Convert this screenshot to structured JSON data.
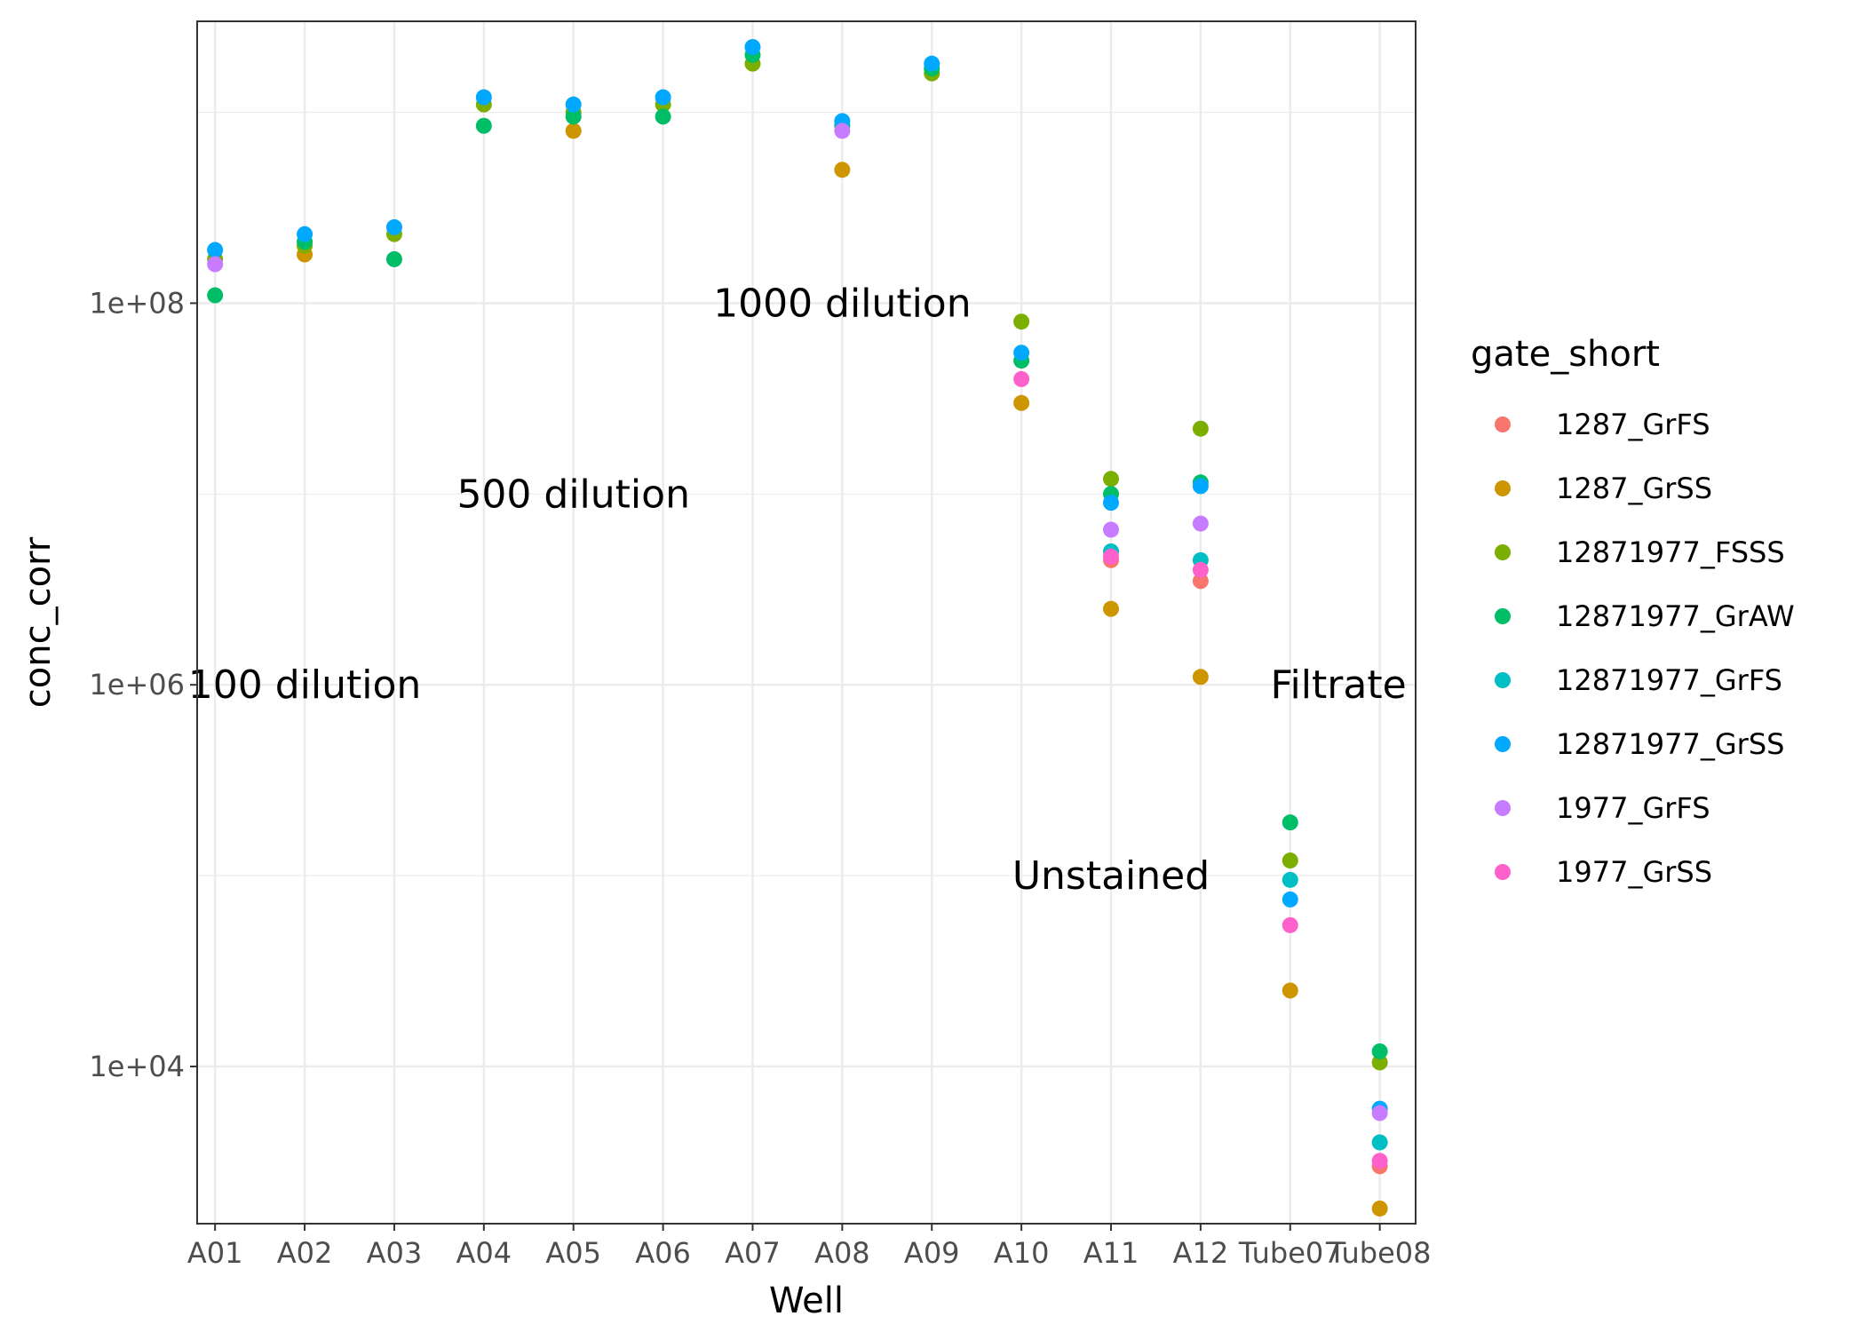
{
  "chart_data": {
    "type": "scatter",
    "xlabel": "Well",
    "ylabel": "conc_corr",
    "y_scale": "log10",
    "ylim": [
      1500,
      3000000000.0
    ],
    "y_ticks": [
      {
        "value": 10000,
        "label": "1e+04"
      },
      {
        "value": 1000000,
        "label": "1e+06"
      },
      {
        "value": 100000000,
        "label": "1e+08"
      }
    ],
    "categories": [
      "A01",
      "A02",
      "A03",
      "A04",
      "A05",
      "A06",
      "A07",
      "A08",
      "A09",
      "A10",
      "A11",
      "A12",
      "Tube07",
      "Tube08"
    ],
    "grid": true,
    "legend": {
      "title": "gate_short",
      "position": "right"
    },
    "annotations": [
      {
        "text": "100 dilution",
        "x": "A02",
        "y": 1000000
      },
      {
        "text": "500 dilution",
        "x": "A05",
        "y": 10000000
      },
      {
        "text": "1000 dilution",
        "x": "A08",
        "y": 100000000
      },
      {
        "text": "Filtrate",
        "x": "Tube08",
        "y": 1000000,
        "anchor": "end"
      },
      {
        "text": "Unstained",
        "x": "A11",
        "y": 100000
      }
    ],
    "series": [
      {
        "name": "1287_GrFS",
        "color": "#F8766D",
        "values": [
          null,
          null,
          null,
          null,
          null,
          null,
          null,
          null,
          null,
          null,
          4500000,
          3500000,
          null,
          3000
        ]
      },
      {
        "name": "1287_GrSS",
        "color": "#CD9600",
        "values": [
          null,
          180000000,
          null,
          null,
          800000000,
          null,
          null,
          500000000,
          null,
          30000000,
          2500000,
          1100000,
          25000,
          1800
        ]
      },
      {
        "name": "12871977_FSSS",
        "color": "#7CAE00",
        "values": [
          170000000,
          200000000,
          230000000,
          1100000000,
          1000000000,
          1100000000,
          1800000000,
          null,
          1600000000,
          80000000,
          12000000,
          22000000,
          120000,
          10500
        ]
      },
      {
        "name": "12871977_GrAW",
        "color": "#00BE67",
        "values": [
          110000000,
          210000000,
          170000000,
          850000000,
          950000000,
          950000000,
          2000000000,
          850000000,
          1700000000,
          50000000,
          10000000,
          11500000,
          190000,
          12000
        ]
      },
      {
        "name": "12871977_GrFS",
        "color": "#00BFC4",
        "values": [
          null,
          null,
          null,
          null,
          null,
          null,
          null,
          null,
          null,
          null,
          5000000,
          4500000,
          95000,
          4000
        ]
      },
      {
        "name": "12871977_GrSS",
        "color": "#00A9FF",
        "values": [
          190000000,
          230000000,
          250000000,
          1200000000,
          1100000000,
          1200000000,
          2200000000,
          900000000,
          1800000000,
          55000000,
          9000000,
          11000000,
          75000,
          6000
        ]
      },
      {
        "name": "1977_GrFS",
        "color": "#C77CFF",
        "values": [
          160000000,
          null,
          null,
          null,
          null,
          null,
          null,
          800000000,
          null,
          null,
          6500000,
          7000000,
          null,
          5700
        ]
      },
      {
        "name": "1977_GrSS",
        "color": "#FF61CC",
        "values": [
          null,
          null,
          null,
          null,
          null,
          null,
          null,
          null,
          null,
          40000000,
          4700000,
          4000000,
          55000,
          3200
        ]
      }
    ]
  }
}
